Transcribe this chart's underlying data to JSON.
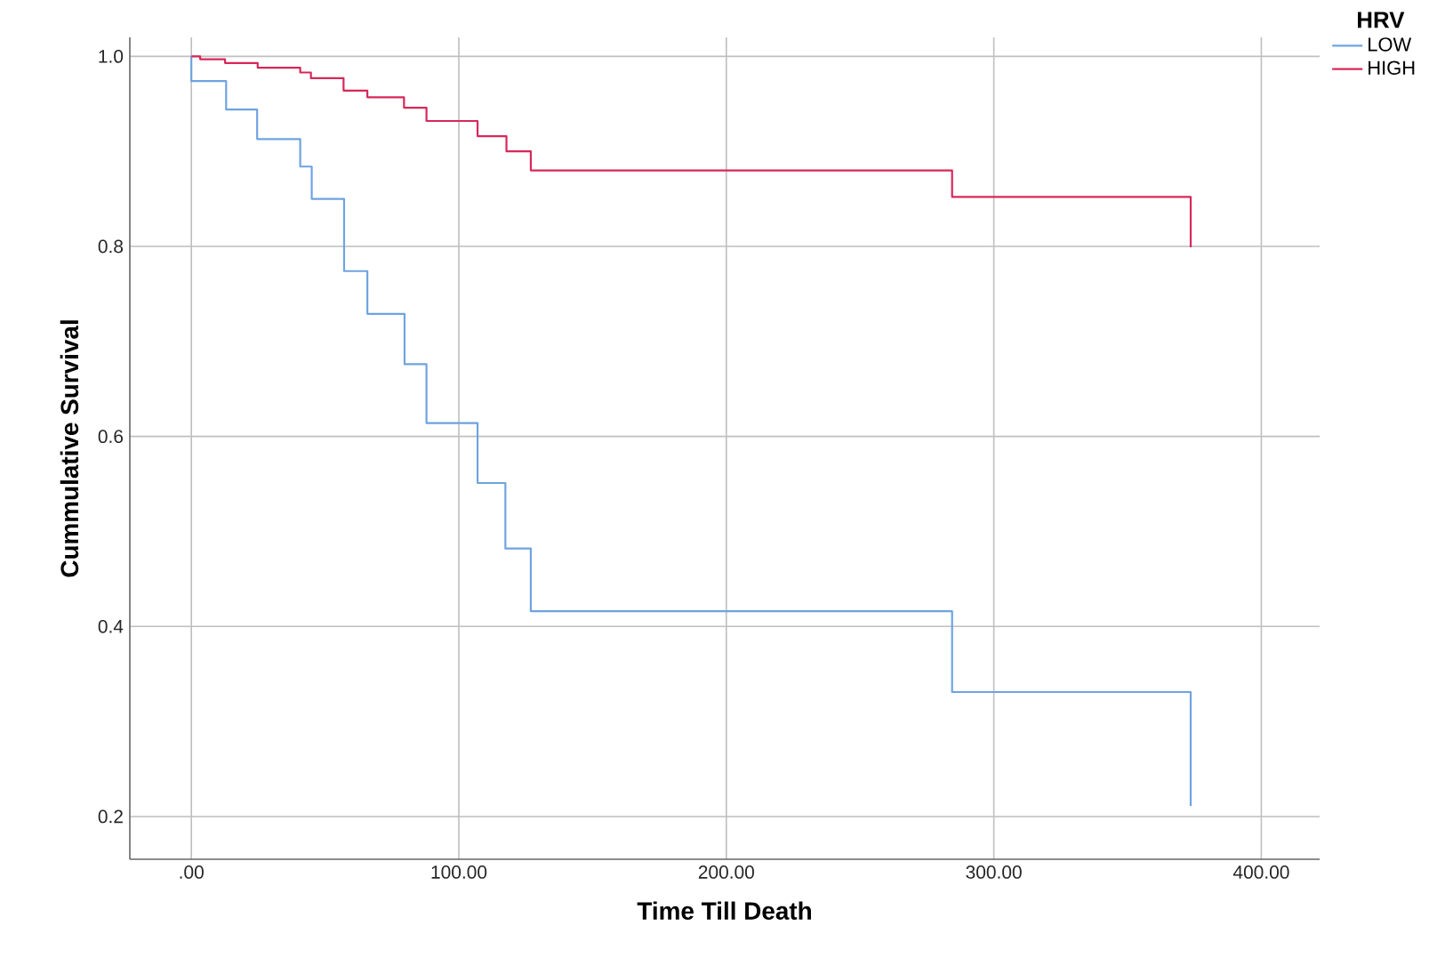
{
  "chart_data": {
    "type": "step",
    "xlabel": "Time Till Death",
    "ylabel": "Cummulative Survival",
    "legend_title": "HRV",
    "legend": "right",
    "grid": true,
    "xlim": [
      -23,
      421.8
    ],
    "ylim": [
      0.155,
      1.02
    ],
    "xticks": [
      {
        "value": 0,
        "label": ".00"
      },
      {
        "value": 100,
        "label": "100.00"
      },
      {
        "value": 200,
        "label": "200.00"
      },
      {
        "value": 300,
        "label": "300.00"
      },
      {
        "value": 400,
        "label": "400.00"
      }
    ],
    "yticks": [
      {
        "value": 0.2,
        "label": "0.2"
      },
      {
        "value": 0.4,
        "label": "0.4"
      },
      {
        "value": 0.6,
        "label": "0.6"
      },
      {
        "value": 0.8,
        "label": "0.8"
      },
      {
        "value": 1.0,
        "label": "1.0"
      }
    ],
    "series": [
      {
        "name": "LOW",
        "color": "#6fa3e0",
        "x": [
          0,
          0,
          13.0,
          24.6,
          40.7,
          45.0,
          57.1,
          65.8,
          79.7,
          87.9,
          107.0,
          117.4,
          126.9,
          284.4,
          373.6
        ],
        "values": [
          1.0,
          0.974,
          0.944,
          0.913,
          0.884,
          0.85,
          0.774,
          0.729,
          0.676,
          0.614,
          0.551,
          0.482,
          0.416,
          0.331,
          0.211
        ]
      },
      {
        "name": "HIGH",
        "color": "#d6285a",
        "x": [
          0,
          3.3,
          12.6,
          24.8,
          40.7,
          44.7,
          56.9,
          65.8,
          79.5,
          87.9,
          107.0,
          117.8,
          126.9,
          284.4,
          373.6
        ],
        "values": [
          1.0,
          0.997,
          0.993,
          0.988,
          0.983,
          0.977,
          0.964,
          0.957,
          0.946,
          0.932,
          0.916,
          0.9,
          0.88,
          0.852,
          0.799
        ]
      }
    ]
  }
}
